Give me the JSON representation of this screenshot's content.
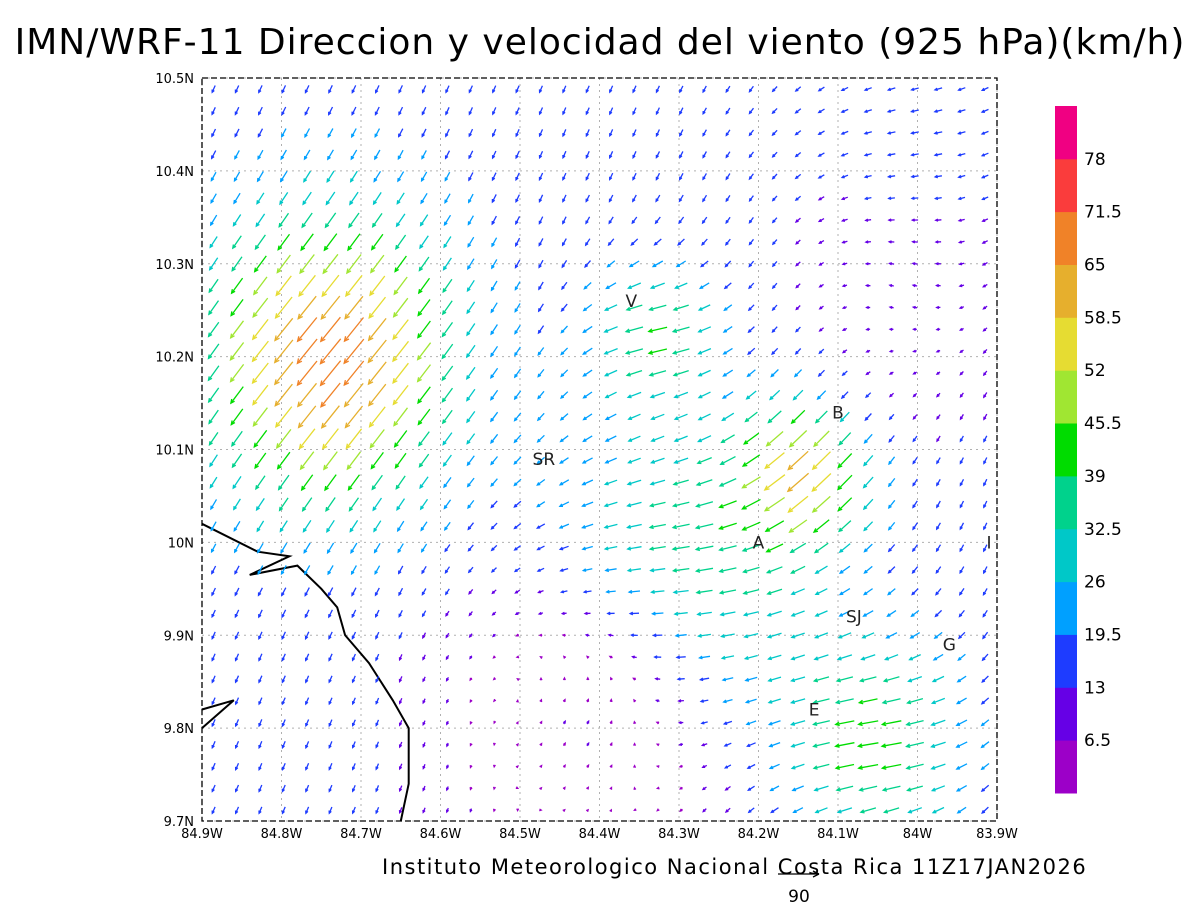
{
  "title": "IMN/WRF-11 Direccion y velocidad del viento (925 hPa)(km/h)",
  "credit": "Instituto Meteorologico Nacional Costa Rica 11Z17JAN2026",
  "reference_vector": {
    "label": "90",
    "value_kmh": 90
  },
  "map": {
    "lon_range": [
      -84.9,
      -83.9
    ],
    "lat_range": [
      9.7,
      10.5
    ],
    "x_ticks": [
      "84.9W",
      "84.8W",
      "84.7W",
      "84.6W",
      "84.5W",
      "84.4W",
      "84.3W",
      "84.2W",
      "84.1W",
      "84W",
      "83.9W"
    ],
    "y_ticks": [
      "9.7N",
      "9.8N",
      "9.9N",
      "10N",
      "10.1N",
      "10.2N",
      "10.3N",
      "10.4N",
      "10.5N"
    ],
    "grid": true,
    "places": [
      {
        "label": "V",
        "lon": -84.36,
        "lat": 10.26
      },
      {
        "label": "SR",
        "lon": -84.47,
        "lat": 10.09
      },
      {
        "label": "B",
        "lon": -84.1,
        "lat": 10.14
      },
      {
        "label": "A",
        "lon": -84.2,
        "lat": 10.0
      },
      {
        "label": "I",
        "lon": -83.91,
        "lat": 10.0
      },
      {
        "label": "SJ",
        "lon": -84.08,
        "lat": 9.92
      },
      {
        "label": "G",
        "lon": -83.96,
        "lat": 9.89
      },
      {
        "label": "E",
        "lon": -84.13,
        "lat": 9.82
      }
    ],
    "coastline": [
      [
        -84.9,
        10.02
      ],
      [
        -84.83,
        9.99
      ],
      [
        -84.79,
        9.985
      ],
      [
        -84.84,
        9.965
      ],
      [
        -84.78,
        9.975
      ],
      [
        -84.75,
        9.95
      ],
      [
        -84.73,
        9.93
      ],
      [
        -84.72,
        9.9
      ],
      [
        -84.69,
        9.87
      ],
      [
        -84.66,
        9.83
      ],
      [
        -84.64,
        9.8
      ],
      [
        -84.64,
        9.74
      ],
      [
        -84.65,
        9.7
      ]
    ],
    "coastline_south": [
      [
        -84.9,
        9.82
      ],
      [
        -84.86,
        9.83
      ],
      [
        -84.9,
        9.8
      ]
    ]
  },
  "colorbar": {
    "labels": [
      "78",
      "71.5",
      "65",
      "58.5",
      "52",
      "45.5",
      "39",
      "32.5",
      "26",
      "19.5",
      "13",
      "6.5"
    ],
    "colors": [
      "#9c00c8",
      "#6600e6",
      "#1e3cff",
      "#00a0ff",
      "#00c8c8",
      "#00d28c",
      "#00dc00",
      "#a0e632",
      "#e6dc32",
      "#e6af2d",
      "#f08228",
      "#fa3c3c",
      "#f00082"
    ]
  }
}
